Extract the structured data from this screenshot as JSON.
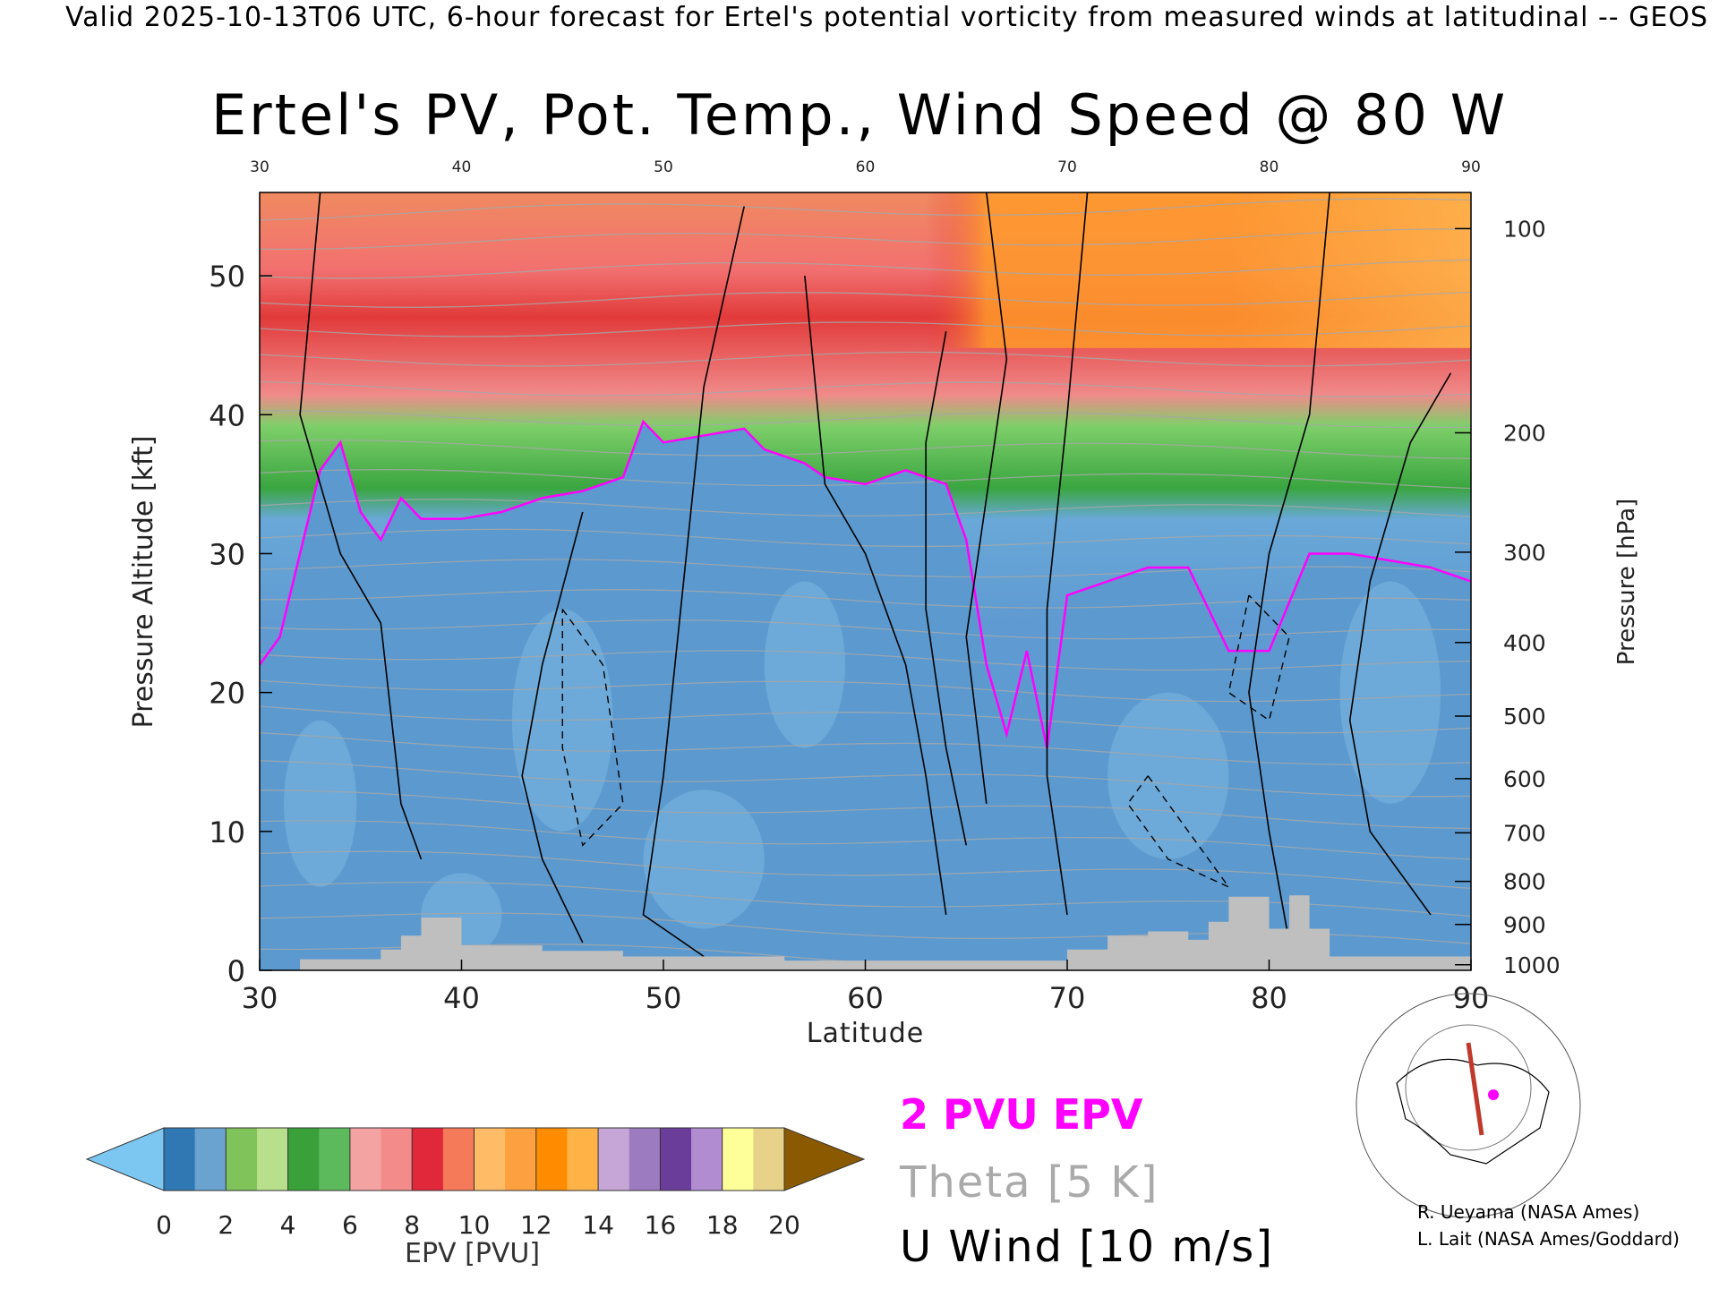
{
  "header": {
    "caption": "Valid 2025-10-13T06 UTC, 6-hour forecast for Ertel's potential vorticity from measured winds at latitudinal -- GEOS",
    "title": "Ertel's PV, Pot. Temp., Wind Speed @ 80 W"
  },
  "colors": {
    "epv_contour": "#ff00ff",
    "theta_contour": "#a8a8a8",
    "wind_contour": "#000000",
    "terrain": "#bfbfbf",
    "path": "#c0392b"
  },
  "chart_data": {
    "type": "heatmap",
    "title": "Ertel's PV, Pot. Temp., Wind Speed @ 80 W",
    "xlabel": "Latitude",
    "ylabel": "Pressure Altitude [kft]",
    "y2label": "Pressure [hPa]",
    "xlim": [
      30,
      90
    ],
    "ylim": [
      0,
      56
    ],
    "x_ticks": [
      30,
      40,
      50,
      60,
      70,
      80,
      90
    ],
    "top_ticks": [
      30,
      40,
      50,
      60,
      70,
      80,
      90
    ],
    "y_ticks": [
      0,
      10,
      20,
      30,
      40,
      50
    ],
    "pressure_ticks": [
      {
        "label": "1000",
        "kft": 0.4
      },
      {
        "label": "900",
        "kft": 3.3
      },
      {
        "label": "800",
        "kft": 6.4
      },
      {
        "label": "700",
        "kft": 9.9
      },
      {
        "label": "600",
        "kft": 13.8
      },
      {
        "label": "500",
        "kft": 18.3
      },
      {
        "label": "400",
        "kft": 23.6
      },
      {
        "label": "300",
        "kft": 30.1
      },
      {
        "label": "200",
        "kft": 38.7
      },
      {
        "label": "100",
        "kft": 53.4
      }
    ],
    "pv2_boundary_kft": [
      [
        30,
        22
      ],
      [
        31,
        24
      ],
      [
        32,
        30
      ],
      [
        33,
        36
      ],
      [
        34,
        38
      ],
      [
        35,
        33
      ],
      [
        36,
        31
      ],
      [
        37,
        34
      ],
      [
        38,
        32.5
      ],
      [
        40,
        32.5
      ],
      [
        42,
        33
      ],
      [
        44,
        34
      ],
      [
        46,
        34.5
      ],
      [
        48,
        35.5
      ],
      [
        49,
        39.5
      ],
      [
        50,
        38
      ],
      [
        52,
        38.5
      ],
      [
        54,
        39
      ],
      [
        55,
        37.5
      ],
      [
        56,
        37
      ],
      [
        57,
        36.5
      ],
      [
        58,
        35.5
      ],
      [
        60,
        35
      ],
      [
        62,
        36
      ],
      [
        64,
        35
      ],
      [
        65,
        31
      ],
      [
        66,
        22
      ],
      [
        67,
        17
      ],
      [
        68,
        23
      ],
      [
        69,
        16
      ],
      [
        70,
        27
      ],
      [
        72,
        28
      ],
      [
        74,
        29
      ],
      [
        76,
        29
      ],
      [
        78,
        23
      ],
      [
        80,
        23
      ],
      [
        82,
        30
      ],
      [
        84,
        30
      ],
      [
        86,
        29.5
      ],
      [
        88,
        29
      ],
      [
        90,
        28
      ]
    ],
    "epv_colorbar": {
      "label": "EPV [PVU]",
      "ticks": [
        0,
        2,
        4,
        6,
        8,
        10,
        12,
        14,
        16,
        18,
        20
      ],
      "colors": [
        "#7cc7f2",
        "#2f78b4",
        "#6aa3d0",
        "#7fc35a",
        "#b8e08c",
        "#39a03a",
        "#5cb95c",
        "#f4a3a3",
        "#f48b8b",
        "#e0283a",
        "#f47a5a",
        "#ffbb66",
        "#fda040",
        "#ff8c00",
        "#ffb347",
        "#c6a6d6",
        "#9c7bc0",
        "#6a3d9a",
        "#b28cd0",
        "#ffff99",
        "#e8d28a",
        "#8b5a00"
      ]
    },
    "legend": [
      "2 PVU EPV",
      "Theta [5 K]",
      "U Wind [10 m/s]"
    ]
  },
  "credits": {
    "line1": "R. Ueyama (NASA Ames)",
    "line2": "L. Lait (NASA Ames/Goddard)"
  }
}
